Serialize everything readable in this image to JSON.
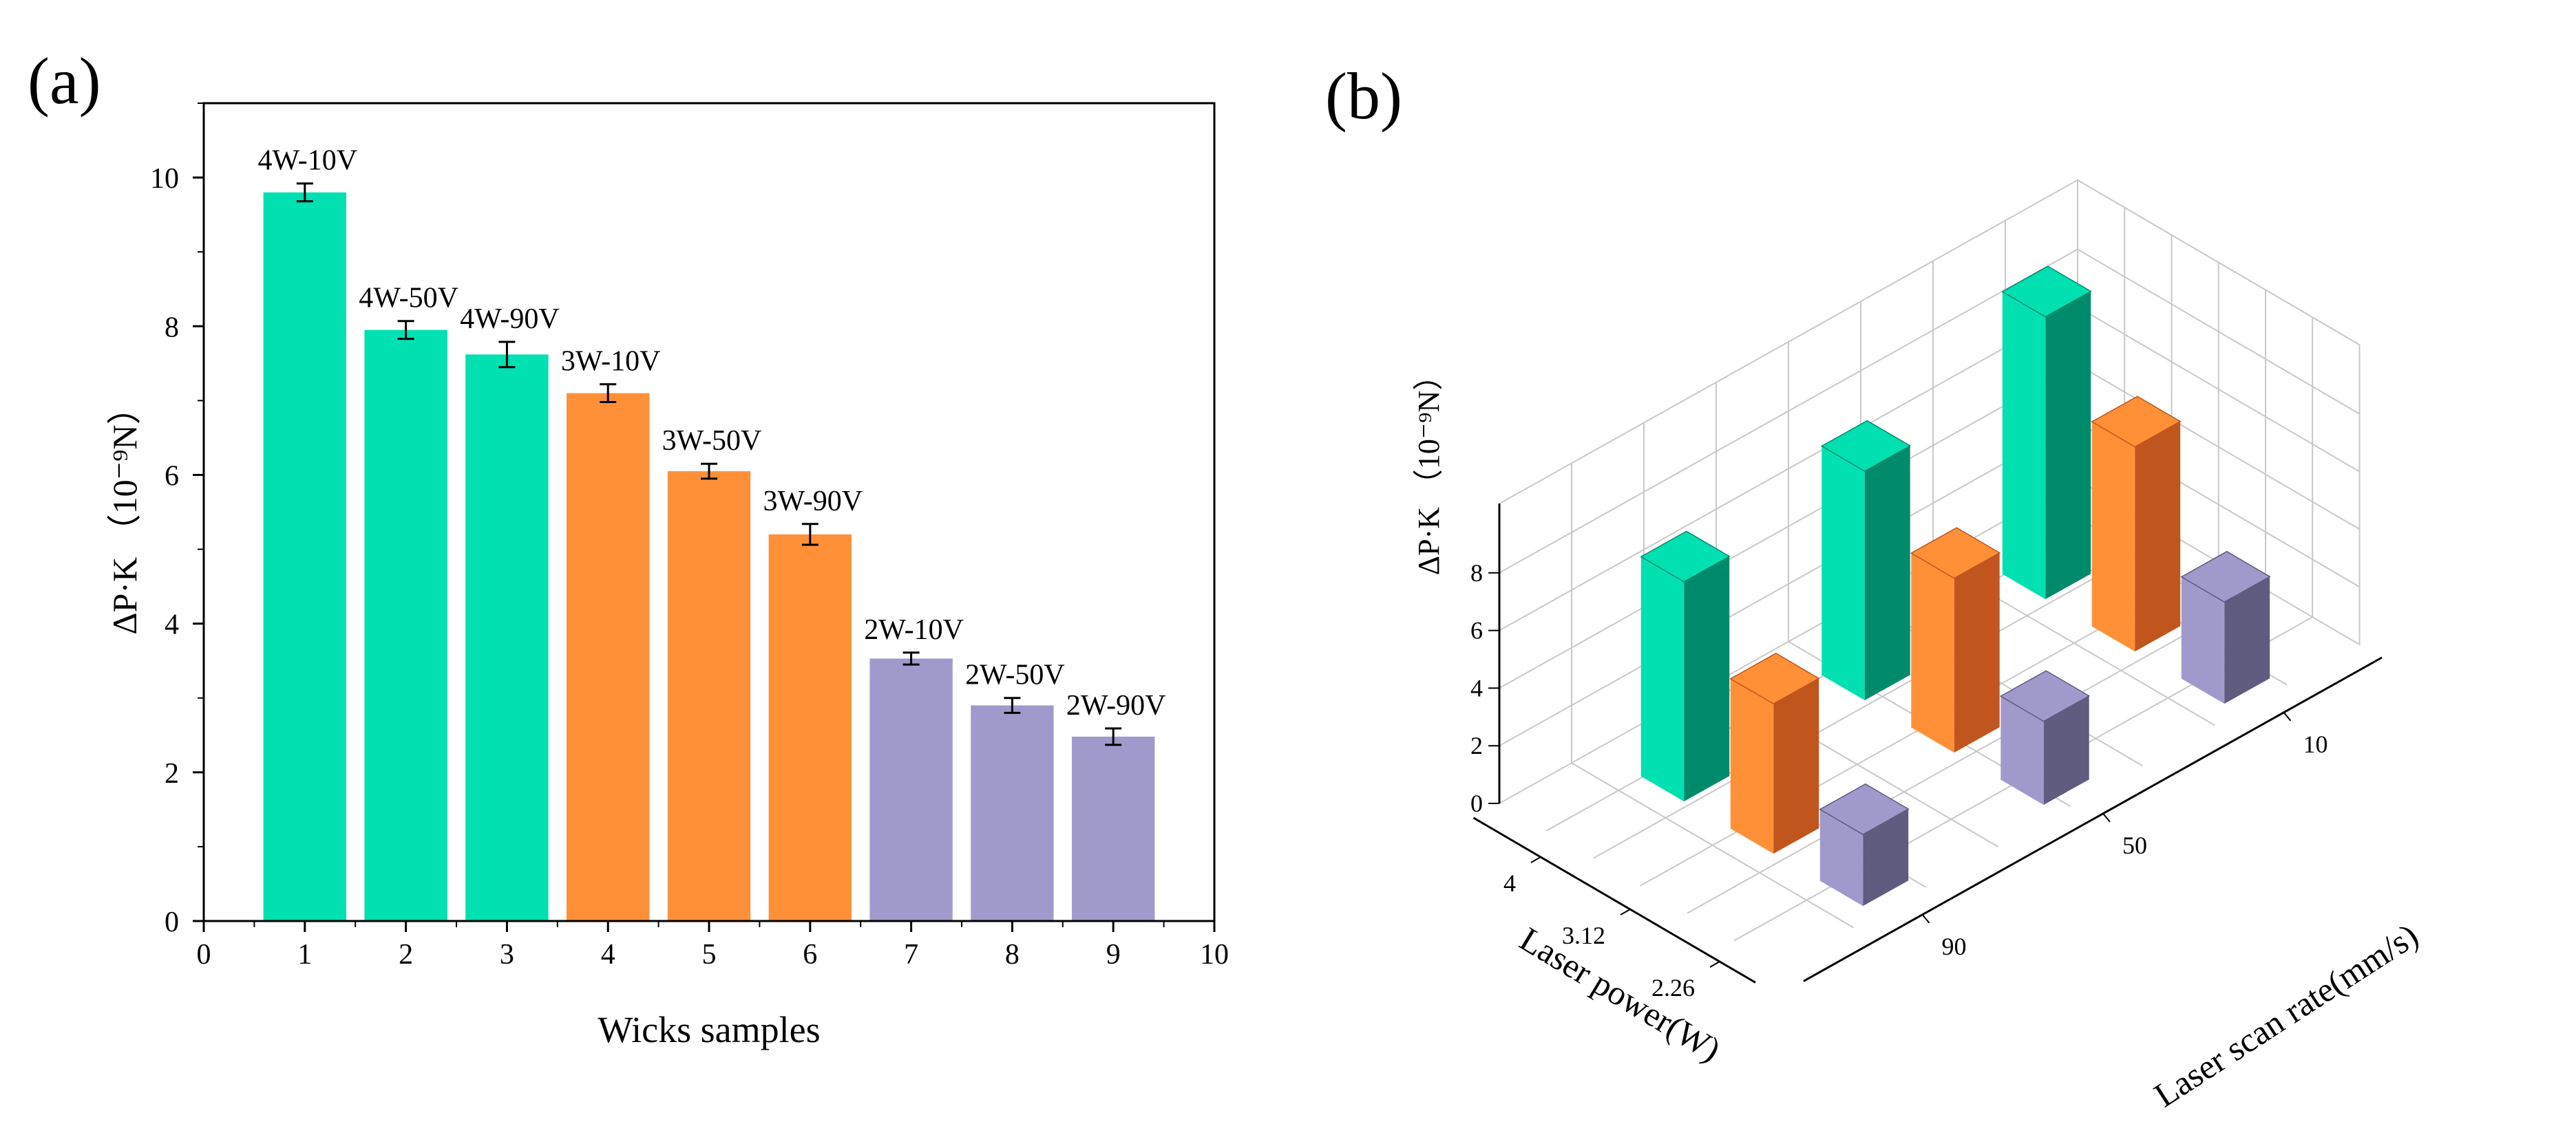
{
  "panels": {
    "a": {
      "tag": "(a)"
    },
    "b": {
      "tag": "(b)"
    }
  },
  "colors": {
    "teal": "#00e0b0",
    "teal_side": "#008a6c",
    "orange": "#ff9038",
    "orange_side": "#c0561e",
    "purple": "#a09acc",
    "purple_side": "#5f5c80",
    "axis": "#000000",
    "grid3d": "#c8c8c8"
  },
  "chart_data": [
    {
      "type": "bar",
      "panel": "a",
      "title": "",
      "xlabel": "Wicks samples",
      "ylabel": "ΔP·K （10⁻⁹N）",
      "xlim": [
        0,
        10
      ],
      "ylim": [
        0,
        11
      ],
      "x_ticks": [
        0,
        1,
        2,
        3,
        4,
        5,
        6,
        7,
        8,
        9,
        10
      ],
      "y_ticks": [
        0,
        2,
        4,
        6,
        8,
        10
      ],
      "x": [
        1,
        2,
        3,
        4,
        5,
        6,
        7,
        8,
        9
      ],
      "values": [
        9.8,
        7.95,
        7.62,
        7.1,
        6.05,
        5.2,
        3.53,
        2.9,
        2.48
      ],
      "errors": [
        0.12,
        0.12,
        0.17,
        0.12,
        0.1,
        0.14,
        0.08,
        0.1,
        0.11
      ],
      "labels": [
        "4W-10V",
        "4W-50V",
        "4W-90V",
        "3W-10V",
        "3W-50V",
        "3W-90V",
        "2W-10V",
        "2W-50V",
        "2W-90V"
      ],
      "groups": [
        "teal",
        "teal",
        "teal",
        "orange",
        "orange",
        "orange",
        "purple",
        "purple",
        "purple"
      ]
    },
    {
      "type": "bar3d",
      "panel": "b",
      "title": "",
      "zlabel": "ΔP·K （10⁻⁹N）",
      "x_axis_label": "Laser power(W)",
      "y_axis_label": "Laser scan rate(mm/s)",
      "power_ticks": [
        "4",
        "3.12",
        "2.26"
      ],
      "rate_ticks": [
        "10",
        "50",
        "90"
      ],
      "z_ticks": [
        "0",
        "2",
        "4",
        "6",
        "8"
      ],
      "zlim": [
        0,
        9.8
      ],
      "bars": [
        {
          "power": "4",
          "rate": "90",
          "value": 7.62,
          "group": "teal"
        },
        {
          "power": "4",
          "rate": "50",
          "value": 7.95,
          "group": "teal"
        },
        {
          "power": "4",
          "rate": "10",
          "value": 9.8,
          "group": "teal"
        },
        {
          "power": "3.12",
          "rate": "90",
          "value": 5.2,
          "group": "orange"
        },
        {
          "power": "3.12",
          "rate": "50",
          "value": 6.05,
          "group": "orange"
        },
        {
          "power": "3.12",
          "rate": "10",
          "value": 7.1,
          "group": "orange"
        },
        {
          "power": "2.26",
          "rate": "90",
          "value": 2.48,
          "group": "purple"
        },
        {
          "power": "2.26",
          "rate": "50",
          "value": 2.9,
          "group": "purple"
        },
        {
          "power": "2.26",
          "rate": "10",
          "value": 3.53,
          "group": "purple"
        }
      ]
    }
  ]
}
